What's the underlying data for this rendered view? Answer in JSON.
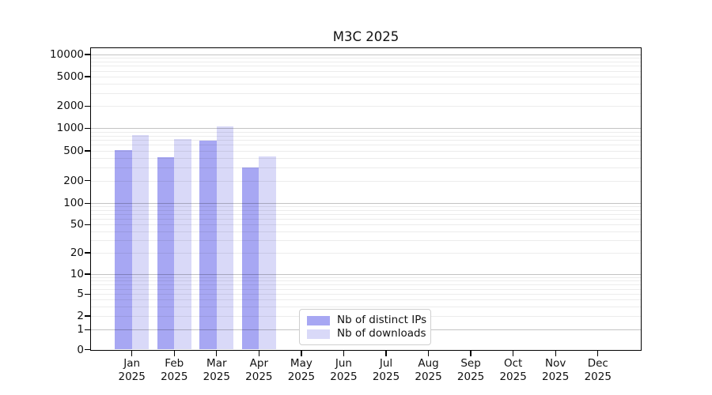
{
  "chart_data": {
    "type": "bar",
    "title": "M3C 2025",
    "categories": [
      "Jan",
      "Feb",
      "Mar",
      "Apr",
      "May",
      "Jun",
      "Jul",
      "Aug",
      "Sep",
      "Oct",
      "Nov",
      "Dec"
    ],
    "year_label": "2025",
    "series": [
      {
        "name": "Nb of distinct IPs",
        "color": "#a7a7f3",
        "values": [
          510,
          415,
          680,
          300,
          0,
          0,
          0,
          0,
          0,
          0,
          0,
          0
        ]
      },
      {
        "name": "Nb of downloads",
        "color": "#d9d9f8",
        "values": [
          820,
          720,
          1060,
          420,
          0,
          0,
          0,
          0,
          0,
          0,
          0,
          0
        ]
      }
    ],
    "y_ticks": [
      0,
      1,
      2,
      5,
      10,
      20,
      50,
      100,
      200,
      500,
      1000,
      2000,
      5000,
      10000
    ],
    "y_scale": "symlog",
    "ylim": [
      0,
      12500
    ],
    "xlabel": "",
    "ylabel": "",
    "grid": true,
    "legend_position": "lower center"
  }
}
